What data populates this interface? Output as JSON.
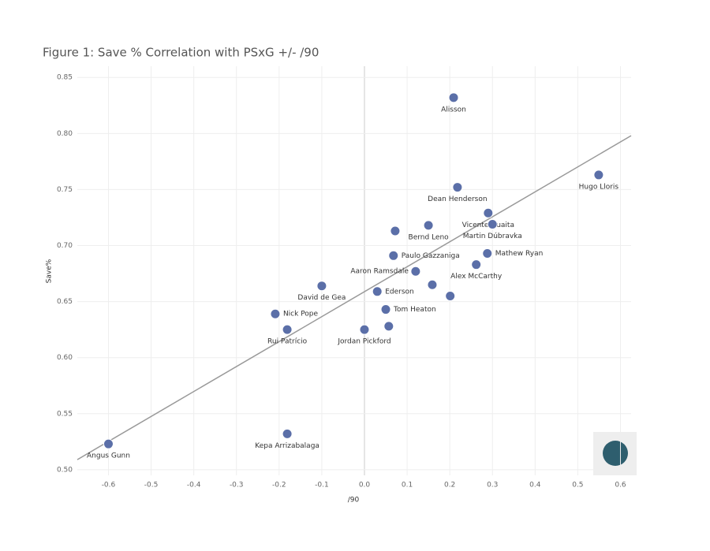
{
  "chart_data": {
    "type": "scatter",
    "title": "Figure 1: Save % Correlation with PSxG +/- /90",
    "x_label": "/90",
    "y_label": "Save%",
    "xlim": [
      -0.673,
      0.625
    ],
    "ylim": [
      0.495,
      0.86
    ],
    "xticks": [
      -0.6,
      -0.5,
      -0.4,
      -0.3,
      -0.2,
      -0.1,
      {
        "value": 0,
        "label": "0.0"
      },
      0.1,
      0.2,
      0.3,
      0.4,
      0.5,
      0.6
    ],
    "yticks": [
      {
        "value": 0.5,
        "label": "0.50"
      },
      0.55,
      {
        "value": 0.6,
        "label": "0.60"
      },
      0.65,
      {
        "value": 0.7,
        "label": "0.70"
      },
      0.75,
      {
        "value": 0.8,
        "label": "0.80"
      },
      0.85
    ],
    "grid": true,
    "trendline": {
      "x": [
        -0.673,
        0.625
      ],
      "y": [
        0.509,
        0.798
      ],
      "color": "#999999"
    },
    "series": [
      {
        "name": null,
        "color": "#5b6fa8",
        "labels": [
          "Alisson",
          "Hugo Lloris",
          "Dean Henderson",
          "Vicente Guaita",
          "Martin Dúbravka",
          "Bernd Leno",
          null,
          "Paulo Gazzaniga",
          "Mathew Ryan",
          "Alex McCarthy",
          "Aaron Ramsdale",
          null,
          null,
          "David de Gea",
          "Ederson",
          "Tom Heaton",
          "Nick Pope",
          "Rui Patrício",
          "Jordan Pickford",
          null,
          "Kepa Arrizabalaga",
          "Angus Gunn"
        ],
        "x": [
          0.209,
          0.549,
          0.218,
          0.29,
          0.3,
          0.15,
          0.072,
          0.068,
          0.288,
          0.262,
          0.12,
          0.159,
          0.201,
          -0.1,
          0.03,
          0.05,
          -0.209,
          -0.181,
          0,
          0.057,
          -0.181,
          -0.6
        ],
        "values": [
          0.832,
          0.763,
          0.752,
          0.729,
          0.719,
          0.718,
          0.713,
          0.691,
          0.693,
          0.683,
          0.677,
          0.665,
          0.655,
          0.664,
          0.659,
          0.643,
          0.639,
          0.625,
          0.625,
          0.628,
          0.532,
          0.523
        ]
      }
    ]
  }
}
